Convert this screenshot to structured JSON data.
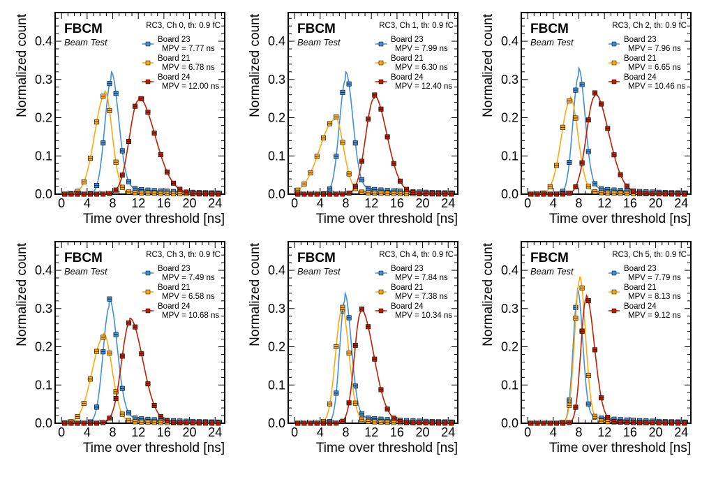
{
  "chart_data": [
    {
      "type": "scatter",
      "experiment": "FBCM",
      "subtitle": "Beam Test",
      "title": "RC3, Ch 0, th: 0.9 fC",
      "xlabel": "Time over threshold [ns]",
      "ylabel": "Normalized count",
      "xlim": [
        -1,
        25.5
      ],
      "ylim": [
        0,
        0.475
      ],
      "xticks": [
        "0",
        "4",
        "8",
        "12",
        "16",
        "20",
        "24"
      ],
      "yticks": [
        "0.0",
        "0.1",
        "0.2",
        "0.3",
        "0.4"
      ],
      "series": [
        {
          "name": "Board 23",
          "mpv_label": "MPV = 7.77 ns",
          "color": "#3f90da",
          "mpv": 7.77,
          "peak": 0.3,
          "sl": 1.0,
          "sr": 1.15,
          "tail": 0.02,
          "tail_decay": 9
        },
        {
          "name": "Board 21",
          "mpv_label": "MPV = 6.78 ns",
          "color": "#ffa90e",
          "mpv": 6.78,
          "peak": 0.26,
          "sl": 1.6,
          "sr": 1.1,
          "tail": 0.01,
          "tail_decay": 5
        },
        {
          "name": "Board 24",
          "mpv_label": "MPV = 12.00 ns",
          "color": "#bd1f01",
          "mpv": 12.0,
          "peak": 0.245,
          "sl": 1.4,
          "sr": 2.6,
          "tail": 0.01,
          "tail_decay": 4
        }
      ]
    },
    {
      "type": "scatter",
      "experiment": "FBCM",
      "subtitle": "Beam Test",
      "title": "RC3, Ch 1, th: 0.9 fC",
      "xlabel": "Time over threshold [ns]",
      "ylabel": "Normalized count",
      "xlim": [
        -1,
        25.5
      ],
      "ylim": [
        0,
        0.475
      ],
      "xticks": [
        "0",
        "4",
        "8",
        "12",
        "16",
        "20",
        "24"
      ],
      "yticks": [
        "0.0",
        "0.1",
        "0.2",
        "0.3",
        "0.4"
      ],
      "series": [
        {
          "name": "Board 23",
          "mpv_label": "MPV = 7.99 ns",
          "color": "#3f90da",
          "mpv": 7.99,
          "peak": 0.3,
          "sl": 1.0,
          "sr": 1.1,
          "tail": 0.02,
          "tail_decay": 9
        },
        {
          "name": "Board 21",
          "mpv_label": "MPV = 6.30 ns",
          "color": "#ffa90e",
          "mpv": 6.3,
          "peak": 0.195,
          "sl": 2.4,
          "sr": 1.3,
          "tail": 0.01,
          "tail_decay": 5
        },
        {
          "name": "Board 24",
          "mpv_label": "MPV = 12.40 ns",
          "color": "#bd1f01",
          "mpv": 12.4,
          "peak": 0.25,
          "sl": 1.3,
          "sr": 2.0,
          "tail": 0.01,
          "tail_decay": 4
        }
      ]
    },
    {
      "type": "scatter",
      "experiment": "FBCM",
      "subtitle": "Beam Test",
      "title": "RC3, Ch 2, th: 0.9 fC",
      "xlabel": "Time over threshold [ns]",
      "ylabel": "Normalized count",
      "xlim": [
        -1,
        25.5
      ],
      "ylim": [
        0,
        0.475
      ],
      "xticks": [
        "0",
        "4",
        "8",
        "12",
        "16",
        "20",
        "24"
      ],
      "yticks": [
        "0.0",
        "0.1",
        "0.2",
        "0.3",
        "0.4"
      ],
      "series": [
        {
          "name": "Board 23",
          "mpv_label": "MPV = 7.96 ns",
          "color": "#3f90da",
          "mpv": 7.96,
          "peak": 0.31,
          "sl": 0.9,
          "sr": 1.0,
          "tail": 0.02,
          "tail_decay": 9
        },
        {
          "name": "Board 21",
          "mpv_label": "MPV = 6.65 ns",
          "color": "#ffa90e",
          "mpv": 6.65,
          "peak": 0.245,
          "sl": 1.4,
          "sr": 1.2,
          "tail": 0.01,
          "tail_decay": 5
        },
        {
          "name": "Board 24",
          "mpv_label": "MPV = 10.46 ns",
          "color": "#bd1f01",
          "mpv": 10.46,
          "peak": 0.255,
          "sl": 1.3,
          "sr": 2.2,
          "tail": 0.01,
          "tail_decay": 4
        }
      ]
    },
    {
      "type": "scatter",
      "experiment": "FBCM",
      "subtitle": "Beam Test",
      "title": "RC3, Ch 3, th: 0.9 fC",
      "xlabel": "Time over threshold [ns]",
      "ylabel": "Normalized count",
      "xlim": [
        -1,
        25.5
      ],
      "ylim": [
        0,
        0.475
      ],
      "xticks": [
        "0",
        "4",
        "8",
        "12",
        "16",
        "20",
        "24"
      ],
      "yticks": [
        "0.0",
        "0.1",
        "0.2",
        "0.3",
        "0.4"
      ],
      "series": [
        {
          "name": "Board 23",
          "mpv_label": "MPV = 7.49 ns",
          "color": "#3f90da",
          "mpv": 7.49,
          "peak": 0.305,
          "sl": 1.0,
          "sr": 1.2,
          "tail": 0.02,
          "tail_decay": 9
        },
        {
          "name": "Board 21",
          "mpv_label": "MPV = 6.58 ns",
          "color": "#ffa90e",
          "mpv": 6.58,
          "peak": 0.225,
          "sl": 1.8,
          "sr": 1.3,
          "tail": 0.01,
          "tail_decay": 5
        },
        {
          "name": "Board 24",
          "mpv_label": "MPV = 10.68 ns",
          "color": "#bd1f01",
          "mpv": 10.68,
          "peak": 0.265,
          "sl": 1.3,
          "sr": 2.0,
          "tail": 0.01,
          "tail_decay": 4
        }
      ]
    },
    {
      "type": "scatter",
      "experiment": "FBCM",
      "subtitle": "Beam Test",
      "title": "RC3, Ch 4, th: 0.9 fC",
      "xlabel": "Time over threshold [ns]",
      "ylabel": "Normalized count",
      "xlim": [
        -1,
        25.5
      ],
      "ylim": [
        0,
        0.475
      ],
      "xticks": [
        "0",
        "4",
        "8",
        "12",
        "16",
        "20",
        "24"
      ],
      "yticks": [
        "0.0",
        "0.1",
        "0.2",
        "0.3",
        "0.4"
      ],
      "series": [
        {
          "name": "Board 23",
          "mpv_label": "MPV = 7.84 ns",
          "color": "#3f90da",
          "mpv": 7.84,
          "peak": 0.32,
          "sl": 0.8,
          "sr": 1.0,
          "tail": 0.02,
          "tail_decay": 9
        },
        {
          "name": "Board 21",
          "mpv_label": "MPV = 7.38 ns",
          "color": "#ffa90e",
          "mpv": 7.38,
          "peak": 0.295,
          "sl": 1.0,
          "sr": 1.1,
          "tail": 0.01,
          "tail_decay": 5
        },
        {
          "name": "Board 24",
          "mpv_label": "MPV = 10.34 ns",
          "color": "#bd1f01",
          "mpv": 10.34,
          "peak": 0.29,
          "sl": 1.0,
          "sr": 2.0,
          "tail": 0.01,
          "tail_decay": 4
        }
      ]
    },
    {
      "type": "scatter",
      "experiment": "FBCM",
      "subtitle": "Beam Test",
      "title": "RC3, Ch 5, th: 0.9 fC",
      "xlabel": "Time over threshold [ns]",
      "ylabel": "Normalized count",
      "xlim": [
        -1,
        25.5
      ],
      "ylim": [
        0,
        0.475
      ],
      "xticks": [
        "0",
        "4",
        "8",
        "12",
        "16",
        "20",
        "24"
      ],
      "yticks": [
        "0.0",
        "0.1",
        "0.2",
        "0.3",
        "0.4"
      ],
      "series": [
        {
          "name": "Board 23",
          "mpv_label": "MPV = 7.79 ns",
          "color": "#3f90da",
          "mpv": 7.79,
          "peak": 0.33,
          "sl": 0.7,
          "sr": 0.8,
          "tail": 0.02,
          "tail_decay": 9
        },
        {
          "name": "Board 21",
          "mpv_label": "MPV = 8.13 ns",
          "color": "#ffa90e",
          "mpv": 8.13,
          "peak": 0.375,
          "sl": 0.8,
          "sr": 0.9,
          "tail": 0.01,
          "tail_decay": 5
        },
        {
          "name": "Board 24",
          "mpv_label": "MPV = 9.12 ns",
          "color": "#bd1f01",
          "mpv": 9.12,
          "peak": 0.325,
          "sl": 0.8,
          "sr": 1.3,
          "tail": 0.01,
          "tail_decay": 4
        }
      ]
    }
  ]
}
